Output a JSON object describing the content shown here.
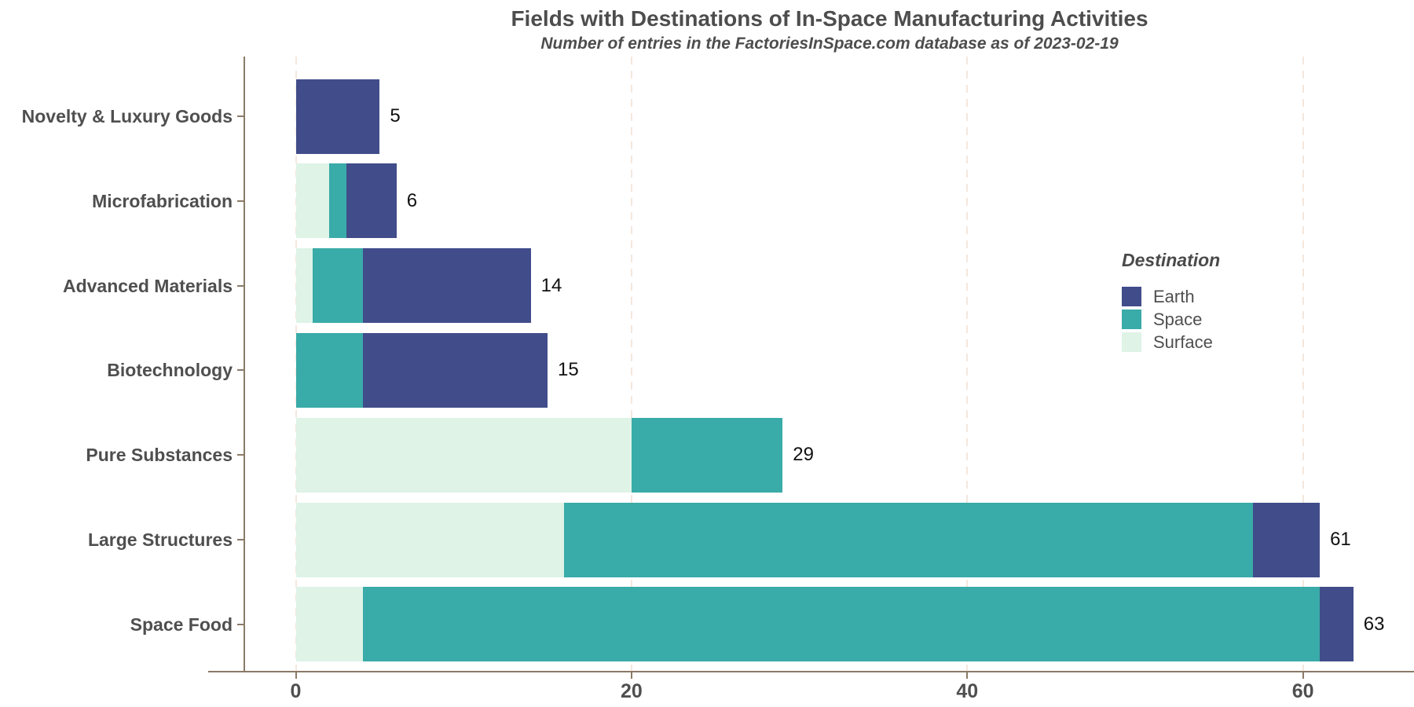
{
  "header": {
    "title": "Fields with Destinations of In-Space Manufacturing Activities",
    "subtitle": "Number of entries in the FactoriesInSpace.com database as of 2023-02-19"
  },
  "legend": {
    "title": "Destination",
    "entries": [
      {
        "label": "Earth",
        "color": "#414C8A"
      },
      {
        "label": "Space",
        "color": "#39ABA8"
      },
      {
        "label": "Surface",
        "color": "#DFF3E7"
      }
    ]
  },
  "chart_data": {
    "type": "bar",
    "orientation": "horizontal",
    "stacked": true,
    "title": "Fields with Destinations of In-Space Manufacturing Activities",
    "subtitle": "Number of entries in the FactoriesInSpace.com database as of 2023-02-19",
    "categories": [
      "Novelty & Luxury Goods",
      "Microfabrication",
      "Advanced Materials",
      "Biotechnology",
      "Pure Substances",
      "Large Structures",
      "Space Food"
    ],
    "series": [
      {
        "name": "Surface",
        "color": "#DFF3E7",
        "values": [
          0,
          2,
          1,
          0,
          20,
          16,
          4
        ]
      },
      {
        "name": "Space",
        "color": "#39ABA8",
        "values": [
          0,
          1,
          3,
          4,
          9,
          41,
          57
        ]
      },
      {
        "name": "Earth",
        "color": "#414C8A",
        "values": [
          5,
          3,
          10,
          11,
          0,
          4,
          2
        ]
      }
    ],
    "totals": [
      5,
      6,
      14,
      15,
      29,
      61,
      63
    ],
    "x_ticks": [
      0,
      20,
      40,
      60
    ],
    "xlim": [
      0,
      66.6
    ],
    "xlabel": "",
    "ylabel": "",
    "grid": "vertical-dashed-major",
    "legend_position": "right-inside",
    "legend_title": "Destination",
    "stack_order": "left-to-right: Surface, Space, Earth"
  },
  "colors": {
    "background": "#FFFFFF",
    "earth": "#414C8A",
    "space": "#39ABA8",
    "surface": "#DFF3E7",
    "axis_line": "#8A7A66",
    "gridline": "#F5E7DD",
    "title_text": "#4D4D4D",
    "axis_text": "#4F4F4F",
    "value_label_text": "#111111"
  }
}
